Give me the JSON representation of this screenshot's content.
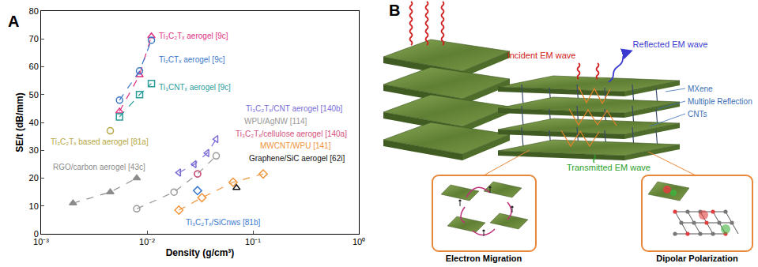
{
  "panel_labels": [
    "A",
    "B"
  ],
  "chart_data": {
    "type": "scatter",
    "x_label": "Density (g/cm³)",
    "y_label": "SE/t (dB/mm)",
    "log": "x",
    "xlim": [
      0.001,
      1
    ],
    "xticks": [
      {
        "value": 0.001,
        "label": "10⁻³"
      },
      {
        "value": 0.01,
        "label": "10⁻²"
      },
      {
        "value": 0.1,
        "label": "10⁻¹"
      },
      {
        "value": 1,
        "label": "10⁰"
      }
    ],
    "ylim": [
      0,
      80
    ],
    "yticks": [
      0,
      10,
      20,
      30,
      40,
      50,
      60,
      70,
      80
    ],
    "grid": false,
    "line_style": "dashed",
    "series": [
      {
        "name": "Ti₃C₂Tₓ aerogel [9c]",
        "color": "#e0307f",
        "marker": "triangle-up-open",
        "x": [
          0.0055,
          0.0085,
          0.011
        ],
        "values": [
          44,
          57,
          71
        ]
      },
      {
        "name": "Ti₂CTₓ aerogel [9c]",
        "color": "#3a78c9",
        "marker": "circle-open",
        "x": [
          0.0055,
          0.0085,
          0.011
        ],
        "values": [
          48,
          58.5,
          69.5
        ]
      },
      {
        "name": "Ti₃CNTₓ aerogel [9c]",
        "color": "#2a9d9a",
        "marker": "square-open",
        "x": [
          0.0055,
          0.0085,
          0.011
        ],
        "values": [
          42,
          50,
          54
        ]
      },
      {
        "name": "Ti₃C₂Tₓ based aerogel [81a]",
        "color": "#b5a642",
        "marker": "circle-open",
        "x": [
          0.0045
        ],
        "values": [
          37
        ]
      },
      {
        "name": "RGO/carbon aerogel [43c]",
        "color": "#8c8c8c",
        "marker": "triangle-up",
        "x": [
          0.002,
          0.0045,
          0.008
        ],
        "values": [
          11,
          15,
          20
        ]
      },
      {
        "name": "Ti₃C₂Tₓ/CNT aerogel [140b]",
        "color": "#7b6fd6",
        "marker": "triangle-left-open",
        "x": [
          0.02,
          0.028,
          0.037,
          0.045
        ],
        "values": [
          22,
          25,
          29,
          34
        ]
      },
      {
        "name": "WPU/AgNW [114]",
        "color": "#999999",
        "marker": "circle-open",
        "x": [
          0.008,
          0.018,
          0.03,
          0.045
        ],
        "values": [
          9,
          15,
          21.5,
          28
        ]
      },
      {
        "name": "Ti₃C₂Tₓ/cellulose aerogel [140a]",
        "color": "#d4507a",
        "marker": "circle-open",
        "x": [
          0.03
        ],
        "values": [
          21.5
        ]
      },
      {
        "name": "MWCNT/WPU [141]",
        "color": "#f0943a",
        "marker": "diamond-open",
        "x": [
          0.02,
          0.033,
          0.065,
          0.125
        ],
        "values": [
          8.5,
          13,
          18.5,
          21.5
        ]
      },
      {
        "name": "Graphene/SiC aerogel [62i]",
        "color": "#111111",
        "marker": "triangle-up-open",
        "x": [
          0.07
        ],
        "values": [
          16.5
        ]
      },
      {
        "name": "Ti₃C₂Tₓ/SiCnws [81b]",
        "color": "#3a7ad0",
        "marker": "diamond-open",
        "x": [
          0.03
        ],
        "values": [
          15.5
        ]
      }
    ]
  },
  "diagram": {
    "incident": "Incident EM wave",
    "reflected": "Reflected EM wave",
    "layer_labels": [
      "MXene",
      "Multiple Reflection",
      "CNTs"
    ],
    "transmitted": "Transmitted EM wave",
    "insets": [
      "Electron Migration",
      "Dipolar Polarization"
    ]
  }
}
